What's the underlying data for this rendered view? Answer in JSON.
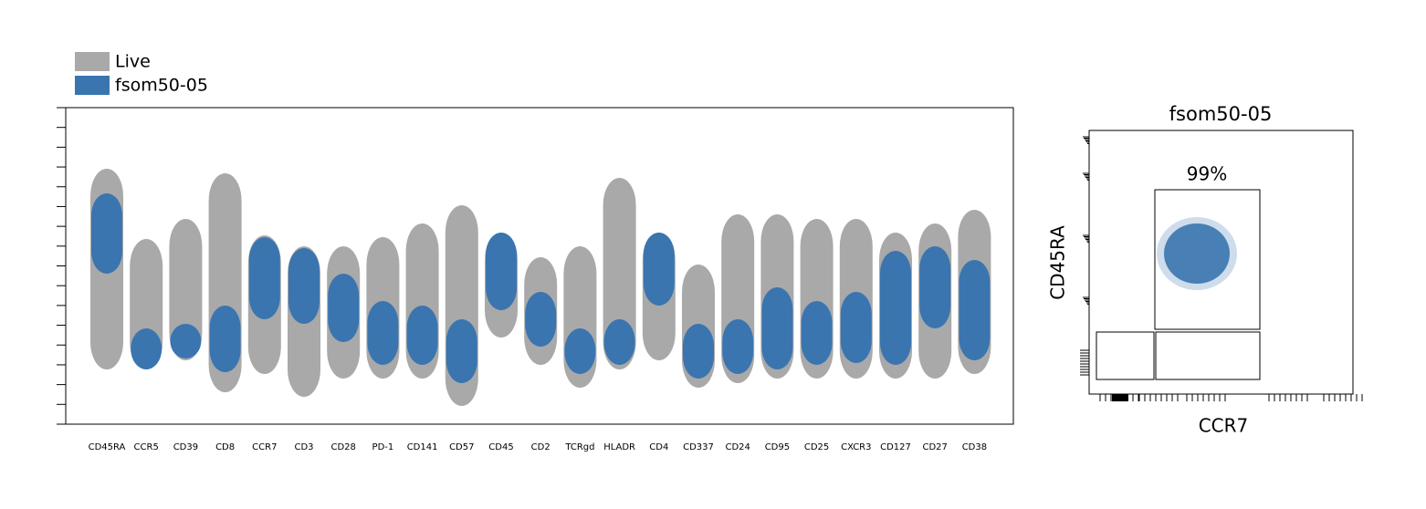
{
  "legend": [
    {
      "label": "Live",
      "color": "#a9a9a9"
    },
    {
      "label": "fsom50-05",
      "color": "#3a75af"
    }
  ],
  "markers": [
    "CD45RA",
    "CCR5",
    "CD39",
    "CD8",
    "CCR7",
    "CD3",
    "CD28",
    "PD-1",
    "CD141",
    "CD57",
    "CD45",
    "CD2",
    "TCRgd",
    "HLADR",
    "CD4",
    "CD337",
    "CD24",
    "CD95",
    "CD25",
    "CXCR3",
    "CD127",
    "CD27",
    "CD38"
  ],
  "scatter_panel": {
    "title": "fsom50-05",
    "x_label": "CCR7",
    "y_label": "CD45RA",
    "gate_label": "99%"
  }
}
